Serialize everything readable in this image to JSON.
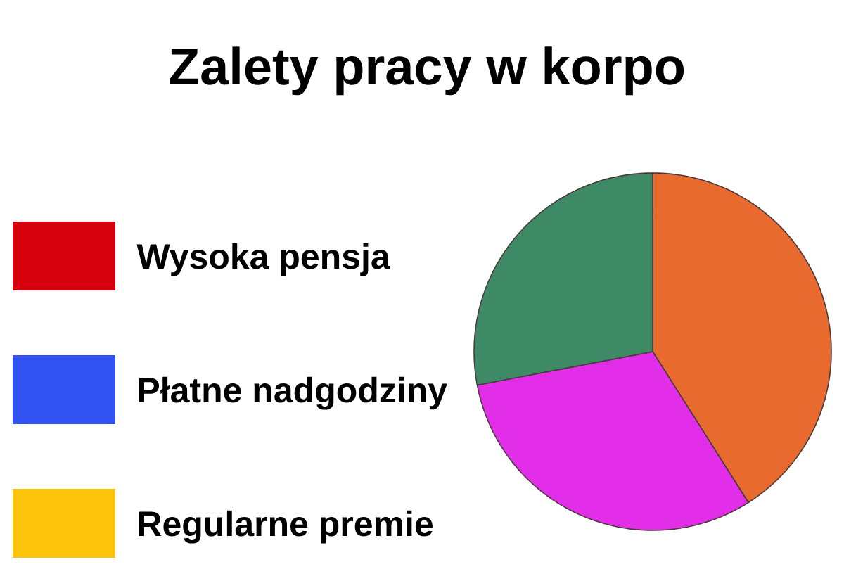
{
  "chart_data": [
    {
      "type": "other",
      "categories": [
        "Wysoka pensja",
        "Płatne nadgodziny",
        "Regularne premie"
      ],
      "colors": [
        "#d7000e",
        "#3352f2",
        "#fbc30b"
      ]
    },
    {
      "type": "pie",
      "title": "Zalety pracy w korpo",
      "categories": [
        null,
        null,
        null
      ],
      "values": [
        41,
        31,
        28
      ],
      "colors": [
        "#e96a2e",
        "#e22ee9",
        "#3e8a66"
      ]
    }
  ]
}
